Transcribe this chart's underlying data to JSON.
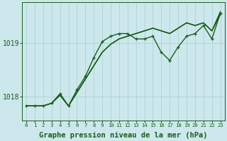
{
  "bg_color": "#cce8ec",
  "grid_color": "#a8cdd2",
  "line_color": "#1a5c1a",
  "xlabel": "Graphe pression niveau de la mer (hPa)",
  "xlabel_fontsize": 7.5,
  "ylabel_fontsize": 7,
  "xticks": [
    0,
    1,
    2,
    3,
    4,
    5,
    6,
    7,
    8,
    9,
    10,
    11,
    12,
    13,
    14,
    15,
    16,
    17,
    18,
    19,
    20,
    21,
    22,
    23
  ],
  "ytick_labels": [
    "1018",
    "1019"
  ],
  "ytick_values": [
    1018.0,
    1019.0
  ],
  "ylim": [
    1017.55,
    1019.75
  ],
  "xlim": [
    -0.5,
    23.5
  ],
  "series_linear1": [
    1017.82,
    1017.82,
    1017.82,
    1017.87,
    1018.02,
    1017.82,
    1018.07,
    1018.32,
    1018.57,
    1018.82,
    1018.97,
    1019.07,
    1019.12,
    1019.17,
    1019.22,
    1019.27,
    1019.22,
    1019.17,
    1019.27,
    1019.37,
    1019.32,
    1019.37,
    1019.22,
    1019.52
  ],
  "series_linear2": [
    1017.82,
    1017.82,
    1017.82,
    1017.87,
    1018.02,
    1017.82,
    1018.07,
    1018.32,
    1018.57,
    1018.82,
    1018.97,
    1019.07,
    1019.12,
    1019.17,
    1019.22,
    1019.27,
    1019.22,
    1019.17,
    1019.27,
    1019.37,
    1019.32,
    1019.37,
    1019.22,
    1019.55
  ],
  "series_linear3": [
    1017.82,
    1017.82,
    1017.82,
    1017.87,
    1018.02,
    1017.82,
    1018.07,
    1018.32,
    1018.57,
    1018.82,
    1018.97,
    1019.07,
    1019.12,
    1019.17,
    1019.22,
    1019.27,
    1019.22,
    1019.17,
    1019.27,
    1019.37,
    1019.32,
    1019.37,
    1019.22,
    1019.58
  ],
  "series_peaked": [
    1017.82,
    1017.82,
    1017.82,
    1017.87,
    1018.05,
    1017.82,
    1018.12,
    1018.37,
    1018.72,
    1019.02,
    1019.12,
    1019.17,
    1019.17,
    1019.07,
    1019.07,
    1019.12,
    1018.82,
    1018.67,
    1018.92,
    1019.12,
    1019.17,
    1019.32,
    1019.07,
    1019.55
  ],
  "marker_size": 3.5
}
